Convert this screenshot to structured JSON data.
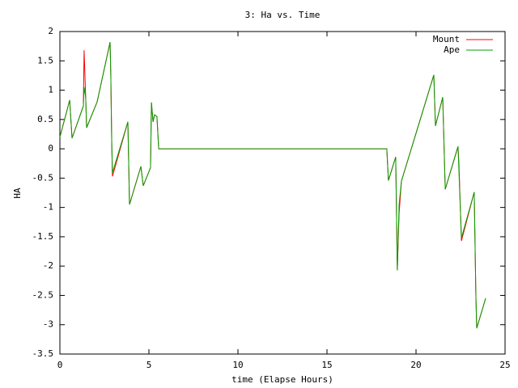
{
  "chart_data": {
    "type": "line",
    "title": "3: Ha vs. Time",
    "x_label": "time (Elapse Hours)",
    "y_label": "HA",
    "xlim": [
      0,
      25
    ],
    "xticks": [
      0,
      5,
      10,
      15,
      20,
      25
    ],
    "ylim": [
      -3.5,
      2
    ],
    "yticks": [
      -3.5,
      -3,
      -2.5,
      -2,
      -1.5,
      -1,
      -0.5,
      0,
      0.5,
      1,
      1.5,
      2
    ],
    "grid": false,
    "legend": "top-right",
    "series": [
      {
        "name": "Mount",
        "color": "#ff0000",
        "x": [
          0,
          0.55,
          0.68,
          1.32,
          1.36,
          1.45,
          1.5,
          2.09,
          2.82,
          2.86,
          2.91,
          2.95,
          3.82,
          3.91,
          4.55,
          4.68,
          5.09,
          5.14,
          5.23,
          5.32,
          5.45,
          5.55,
          18.36,
          18.45,
          18.86,
          18.95,
          19.05,
          19.18,
          21,
          21.09,
          21.5,
          21.64,
          22.36,
          22.41,
          22.55,
          23.27,
          23.36,
          23.41,
          23.91
        ],
        "values": [
          0.2,
          0.83,
          0.18,
          0.73,
          1.68,
          0.87,
          0.36,
          0.8,
          1.82,
          1.26,
          0.15,
          -0.47,
          0.46,
          -0.95,
          -0.3,
          -0.63,
          -0.32,
          0.79,
          0.46,
          0.58,
          0.55,
          0,
          0,
          -0.54,
          -0.14,
          -2.07,
          -1.1,
          -0.55,
          1.26,
          0.39,
          0.88,
          -0.69,
          0.04,
          -0.25,
          -1.57,
          -0.74,
          -2.47,
          -3.06,
          -2.55
        ]
      },
      {
        "name": "Ape",
        "color": "#00a000",
        "x": [
          0,
          0.55,
          0.68,
          1.32,
          1.36,
          1.45,
          1.5,
          2.09,
          2.82,
          2.86,
          2.91,
          2.95,
          3.82,
          3.91,
          4.55,
          4.68,
          5.09,
          5.14,
          5.23,
          5.32,
          5.45,
          5.55,
          18.36,
          18.45,
          18.86,
          18.95,
          19.05,
          19.18,
          21,
          21.09,
          21.5,
          21.64,
          22.36,
          22.41,
          22.55,
          23.27,
          23.36,
          23.41,
          23.91
        ],
        "values": [
          0.2,
          0.83,
          0.18,
          0.73,
          1.05,
          0.87,
          0.36,
          0.8,
          1.82,
          1.26,
          0.15,
          -0.41,
          0.46,
          -0.95,
          -0.3,
          -0.63,
          -0.32,
          0.79,
          0.46,
          0.58,
          0.55,
          0,
          0,
          -0.54,
          -0.14,
          -2.07,
          -0.95,
          -0.55,
          1.26,
          0.39,
          0.88,
          -0.69,
          0.04,
          -0.37,
          -1.52,
          -0.74,
          -2.47,
          -3.06,
          -2.55
        ]
      }
    ]
  }
}
